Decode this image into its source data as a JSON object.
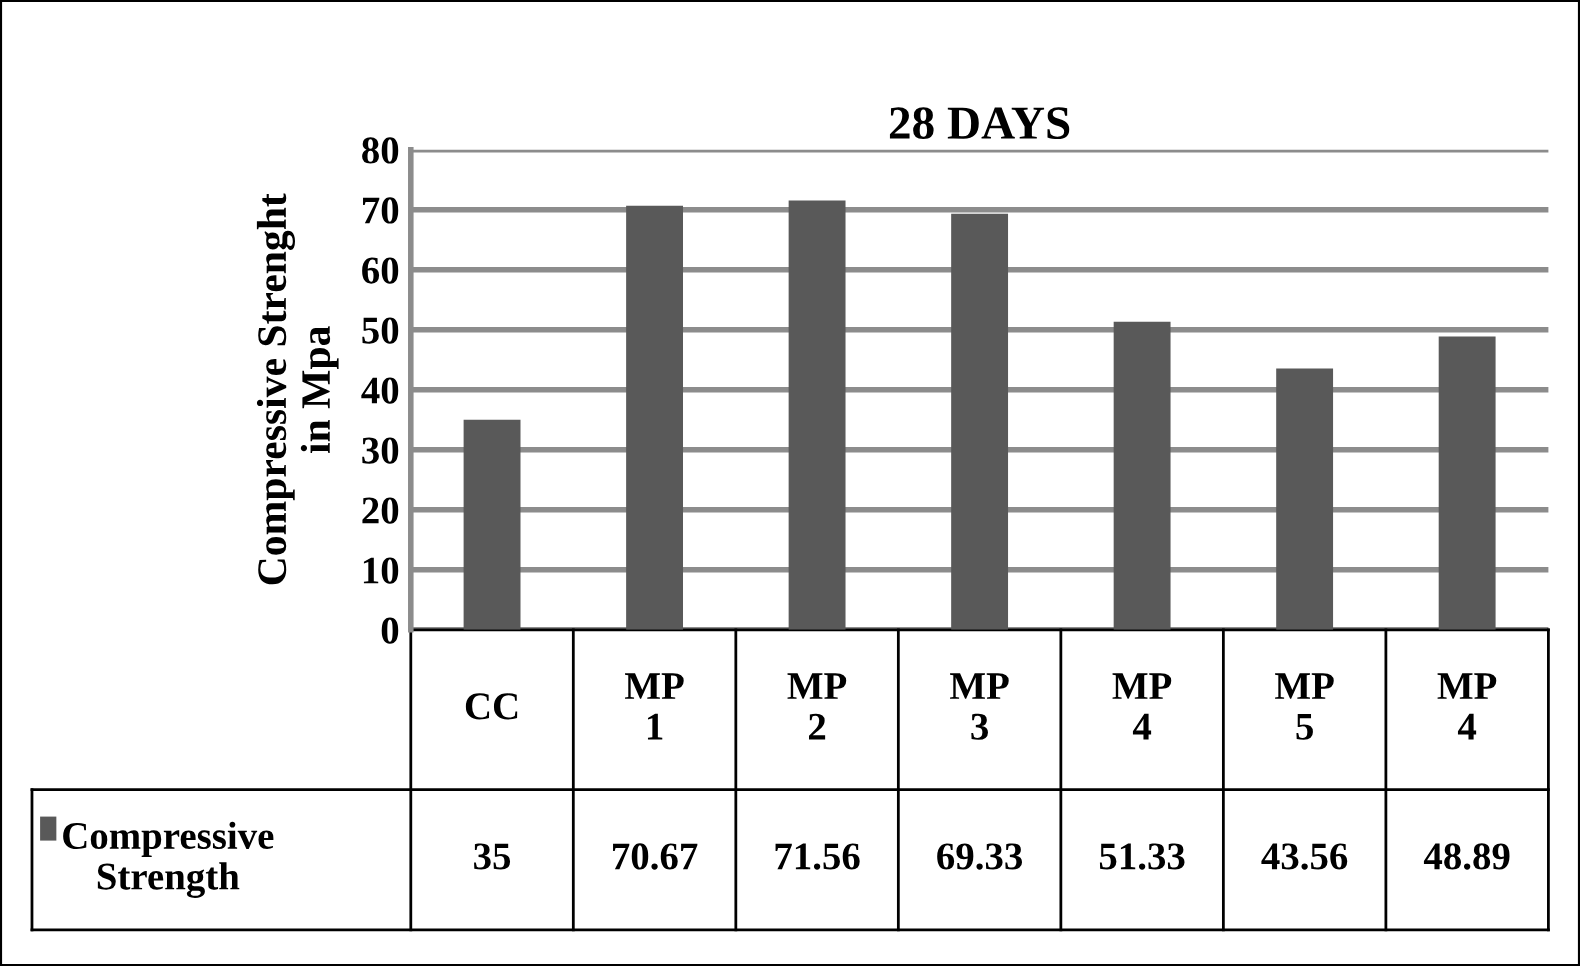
{
  "chart_data": {
    "type": "bar",
    "title": "28 DAYS",
    "ylabel": "Compressive Strenght\nin Mpa",
    "categories": [
      "CC",
      "MP\n1",
      "MP\n2",
      "MP\n3",
      "MP\n4",
      "MP\n5",
      "MP\n4"
    ],
    "series": [
      {
        "name": "Compressive\nStrength",
        "color": "#595959",
        "values": [
          35,
          70.67,
          71.56,
          69.33,
          51.33,
          43.56,
          48.89
        ]
      }
    ],
    "ylim": [
      0,
      80
    ],
    "yticks": [
      0,
      10,
      20,
      30,
      40,
      50,
      60,
      70,
      80
    ],
    "grid": "y",
    "data_labels": true,
    "legend": "bottom left"
  }
}
